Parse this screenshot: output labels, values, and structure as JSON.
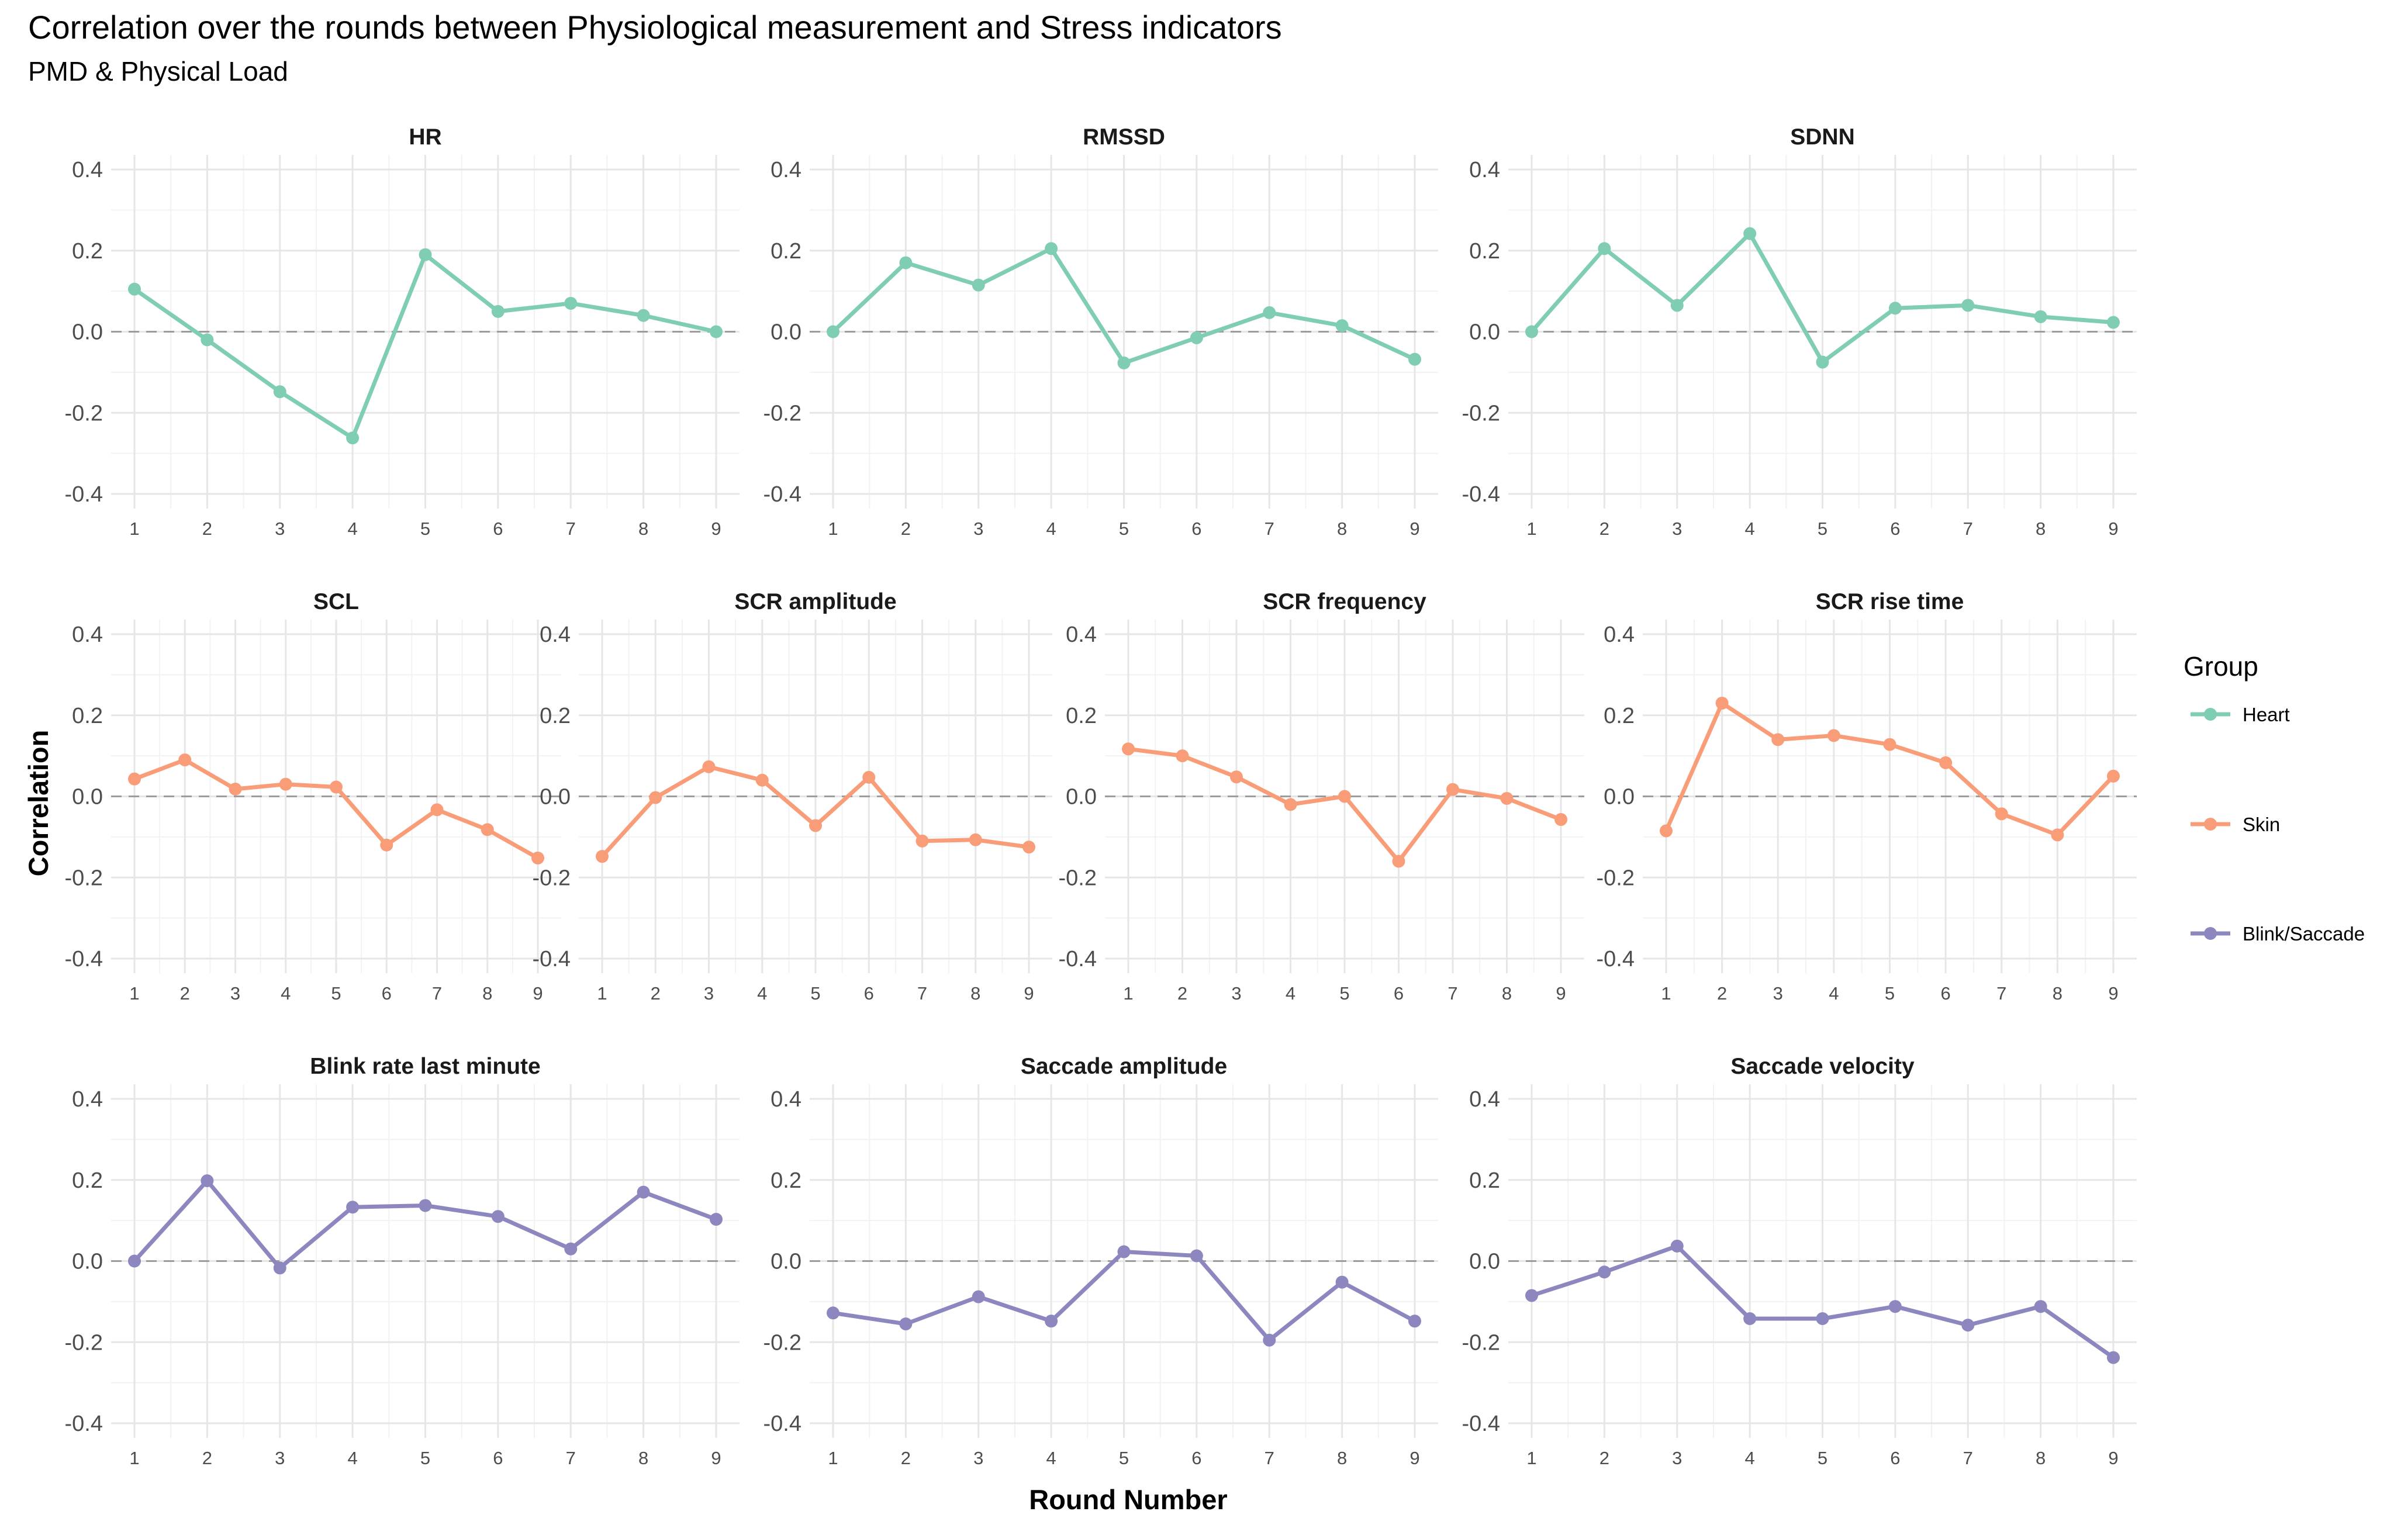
{
  "chart_data": {
    "type": "line",
    "title": "Correlation over the rounds between Physiological measurement and Stress indicators",
    "subtitle": "PMD & Physical Load",
    "xlabel": "Round Number",
    "ylabel": "Correlation",
    "ylim": [
      -0.4,
      0.4
    ],
    "yticks": [
      "-0.4",
      "-0.2",
      "0.0",
      "0.2",
      "0.4"
    ],
    "x": [
      1,
      2,
      3,
      4,
      5,
      6,
      7,
      8,
      9
    ],
    "grid": true,
    "reference_line": 0,
    "legend": {
      "title": "Group",
      "position": "right",
      "entries": [
        {
          "label": "Heart",
          "color": "#7fcdb3"
        },
        {
          "label": "Skin",
          "color": "#f99d79"
        },
        {
          "label": "Blink/Saccade",
          "color": "#8c87be"
        }
      ]
    },
    "panels": [
      {
        "name": "HR",
        "group": "Heart",
        "values": [
          0.105,
          -0.02,
          -0.148,
          -0.262,
          0.19,
          0.05,
          0.07,
          0.04,
          0.0
        ]
      },
      {
        "name": "RMSSD",
        "group": "Heart",
        "values": [
          0.0,
          0.17,
          0.115,
          0.205,
          -0.077,
          -0.015,
          0.047,
          0.015,
          -0.068
        ]
      },
      {
        "name": "SDNN",
        "group": "Heart",
        "values": [
          0.0,
          0.205,
          0.065,
          0.242,
          -0.075,
          0.058,
          0.065,
          0.037,
          0.023
        ]
      },
      {
        "name": "SCL",
        "group": "Skin",
        "values": [
          0.043,
          0.09,
          0.018,
          0.03,
          0.023,
          -0.12,
          -0.033,
          -0.082,
          -0.152
        ]
      },
      {
        "name": "SCR amplitude",
        "group": "Skin",
        "values": [
          -0.148,
          -0.003,
          0.073,
          0.04,
          -0.072,
          0.047,
          -0.11,
          -0.107,
          -0.125
        ]
      },
      {
        "name": "SCR frequency",
        "group": "Skin",
        "values": [
          0.117,
          0.1,
          0.048,
          -0.02,
          0.0,
          -0.16,
          0.017,
          -0.005,
          -0.057
        ]
      },
      {
        "name": "SCR rise time",
        "group": "Skin",
        "values": [
          -0.085,
          0.23,
          0.14,
          0.15,
          0.128,
          0.083,
          -0.043,
          -0.095,
          0.05
        ]
      },
      {
        "name": "Blink rate last minute",
        "group": "Blink/Saccade",
        "values": [
          0.0,
          0.198,
          -0.017,
          0.133,
          0.137,
          0.11,
          0.03,
          0.17,
          0.103
        ]
      },
      {
        "name": "Saccade amplitude",
        "group": "Blink/Saccade",
        "values": [
          -0.128,
          -0.155,
          -0.088,
          -0.148,
          0.023,
          0.013,
          -0.195,
          -0.052,
          -0.148
        ]
      },
      {
        "name": "Saccade velocity",
        "group": "Blink/Saccade",
        "values": [
          -0.085,
          -0.027,
          0.037,
          -0.142,
          -0.142,
          -0.112,
          -0.158,
          -0.112,
          -0.238
        ]
      }
    ]
  }
}
